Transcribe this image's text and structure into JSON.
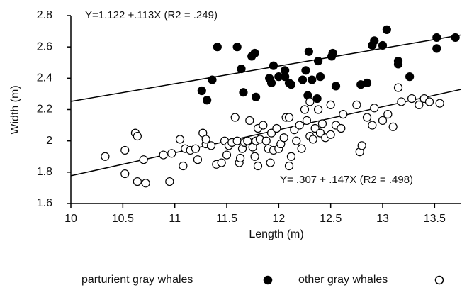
{
  "chart_data": {
    "type": "scatter",
    "xlabel": "Length (m)",
    "ylabel": "Width (m)",
    "xlim": [
      10,
      13.75
    ],
    "ylim": [
      1.6,
      2.8
    ],
    "xticks": [
      10,
      10.5,
      11,
      11.5,
      12,
      12.5,
      13,
      13.5
    ],
    "yticks": [
      1.6,
      1.8,
      2,
      2.2,
      2.4,
      2.6,
      2.8
    ],
    "annotations": [
      "Y=1.122 +.113X (R2 = .249)",
      "Y= .307 + .147X (R2 = .498)"
    ],
    "fits": [
      {
        "intercept": 1.122,
        "slope": 0.113
      },
      {
        "intercept": 0.307,
        "slope": 0.147
      }
    ],
    "legend": "bottom",
    "series": [
      {
        "name": "parturient gray whales",
        "color": "#000000",
        "filled": true,
        "x": [
          11.26,
          11.31,
          11.36,
          11.41,
          11.6,
          11.64,
          11.66,
          11.74,
          11.77,
          11.78,
          11.91,
          11.93,
          11.95,
          12.0,
          12.06,
          12.06,
          12.1,
          12.12,
          12.23,
          12.26,
          12.28,
          12.29,
          12.32,
          12.37,
          12.38,
          12.4,
          12.51,
          12.52,
          12.55,
          12.79,
          12.85,
          12.9,
          12.92,
          13.0,
          13.04,
          13.15,
          13.15,
          13.26,
          13.52,
          13.52,
          13.7
        ],
        "values": [
          2.32,
          2.26,
          2.39,
          2.6,
          2.6,
          2.46,
          2.31,
          2.54,
          2.56,
          2.28,
          2.4,
          2.37,
          2.48,
          2.41,
          2.41,
          2.45,
          2.37,
          2.36,
          2.39,
          2.45,
          2.29,
          2.57,
          2.39,
          2.27,
          2.51,
          2.41,
          2.54,
          2.56,
          2.35,
          2.36,
          2.37,
          2.61,
          2.64,
          2.61,
          2.71,
          2.51,
          2.49,
          2.41,
          2.66,
          2.59,
          2.66
        ]
      },
      {
        "name": "other gray whales",
        "color": "#000000",
        "filled": false,
        "x": [
          10.33,
          10.52,
          10.52,
          10.62,
          10.64,
          10.64,
          10.7,
          10.72,
          10.89,
          10.95,
          10.97,
          11.05,
          11.08,
          11.1,
          11.15,
          11.2,
          11.22,
          11.27,
          11.3,
          11.3,
          11.35,
          11.4,
          11.45,
          11.48,
          11.5,
          11.52,
          11.55,
          11.58,
          11.6,
          11.62,
          11.63,
          11.65,
          11.67,
          11.7,
          11.72,
          11.75,
          11.77,
          11.78,
          11.8,
          11.8,
          11.82,
          11.85,
          11.88,
          11.9,
          11.92,
          11.93,
          11.95,
          11.98,
          12.0,
          12.02,
          12.05,
          12.07,
          12.1,
          12.12,
          12.15,
          12.17,
          12.2,
          12.22,
          12.25,
          12.27,
          12.3,
          12.3,
          12.33,
          12.35,
          12.38,
          12.4,
          12.42,
          12.45,
          12.5,
          12.55,
          12.6,
          12.75,
          12.78,
          12.8,
          12.85,
          12.9,
          12.92,
          13.0,
          13.05,
          13.1,
          13.15,
          13.18,
          13.28,
          13.35,
          13.4,
          13.45,
          13.55,
          12.1,
          12.5,
          12.62
        ],
        "values": [
          1.9,
          1.94,
          1.79,
          2.05,
          2.03,
          1.74,
          1.88,
          1.73,
          1.91,
          1.74,
          1.92,
          2.01,
          1.84,
          1.95,
          1.94,
          1.95,
          1.88,
          2.05,
          1.98,
          2.01,
          1.97,
          1.85,
          1.86,
          2.0,
          1.91,
          1.97,
          1.99,
          2.15,
          2.0,
          1.86,
          1.89,
          1.95,
          1.99,
          2.0,
          2.13,
          1.96,
          1.9,
          2.0,
          1.84,
          2.08,
          2.01,
          2.1,
          2.0,
          1.95,
          1.86,
          2.05,
          1.94,
          2.08,
          1.95,
          1.98,
          2.02,
          2.15,
          2.15,
          1.9,
          2.07,
          2.0,
          2.1,
          1.95,
          2.2,
          2.13,
          2.03,
          2.25,
          2.01,
          2.08,
          2.2,
          2.05,
          2.11,
          2.02,
          2.04,
          2.1,
          2.08,
          2.23,
          1.93,
          1.97,
          2.15,
          2.1,
          2.21,
          2.13,
          2.17,
          2.09,
          2.34,
          2.25,
          2.27,
          2.23,
          2.27,
          2.25,
          2.24,
          1.84,
          2.23,
          2.17
        ]
      }
    ]
  }
}
